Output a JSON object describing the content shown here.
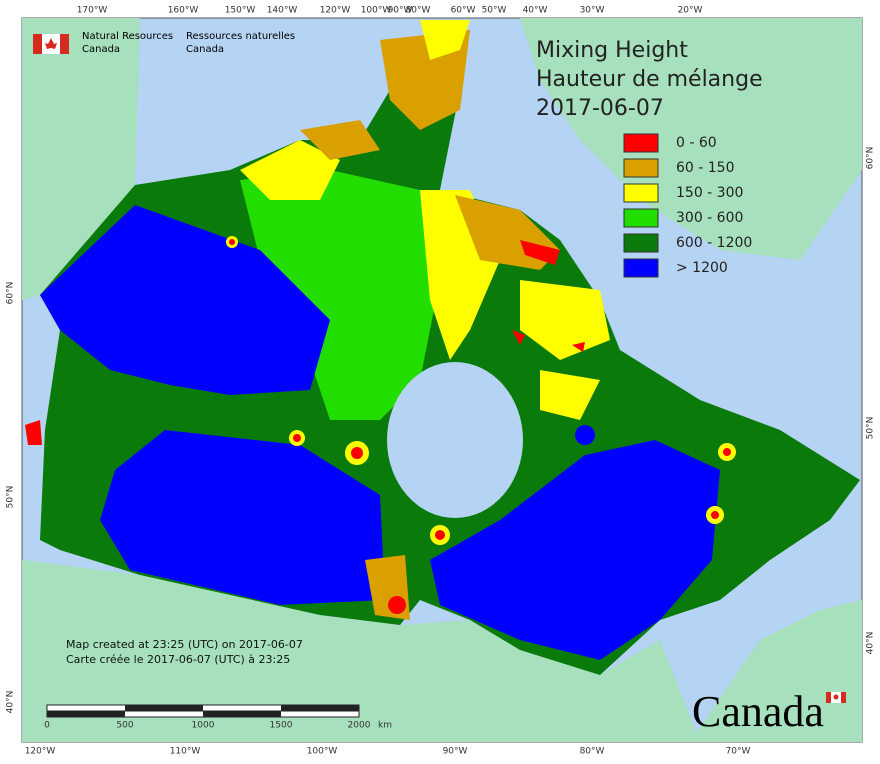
{
  "header": {
    "agency_en": [
      "Natural Resources",
      "Canada"
    ],
    "agency_fr": [
      "Ressources naturelles",
      "Canada"
    ]
  },
  "title": [
    "Mixing Height",
    "Hauteur de mélange",
    "2017-06-07"
  ],
  "legend": [
    {
      "label": "0 - 60",
      "color": "#ff0000"
    },
    {
      "label": "60 - 150",
      "color": "#d9a000"
    },
    {
      "label": "150 - 300",
      "color": "#ffff00"
    },
    {
      "label": "300 - 600",
      "color": "#22dd00"
    },
    {
      "label": "600 - 1200",
      "color": "#0a7a0a"
    },
    {
      "label": "> 1200",
      "color": "#0000ff"
    }
  ],
  "graticule": {
    "top": [
      "170°W",
      "160°W",
      "150°W",
      "140°W",
      "120°W",
      "100°W",
      "90°W",
      "80°W",
      "60°W",
      "50°W",
      "40°W",
      "30°W",
      "20°W"
    ],
    "bottom": [
      "120°W",
      "110°W",
      "100°W",
      "90°W",
      "80°W",
      "70°W"
    ],
    "left": [
      "60°N",
      "50°N",
      "40°N"
    ],
    "right": [
      "60°N",
      "50°N",
      "40°N"
    ]
  },
  "notes": [
    "Map created at 23:25 (UTC) on 2017-06-07",
    "Carte créée le 2017-06-07 (UTC) à 23:25"
  ],
  "scale_bar": {
    "ticks": [
      "0",
      "500",
      "1000",
      "1500",
      "2000"
    ],
    "unit": "km"
  },
  "wordmark": "Canada"
}
